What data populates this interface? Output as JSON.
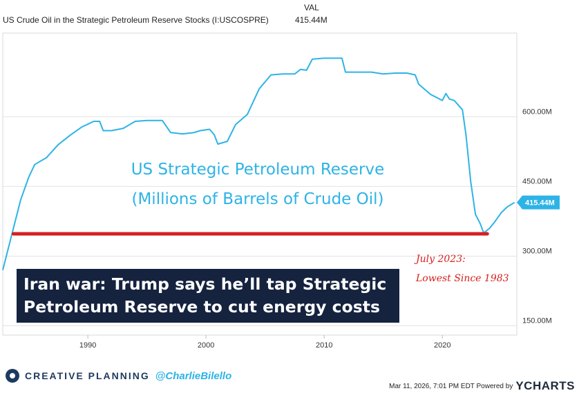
{
  "header": {
    "column_label": "VAL",
    "series_title": "US Crude Oil in the Strategic Petroleum Reserve Stocks (I:USCOSPRE)",
    "series_value": "415.44M"
  },
  "chart_data": {
    "type": "line",
    "title": "US Crude Oil in the Strategic Petroleum Reserve Stocks (I:USCOSPRE)",
    "y_tick_labels": [
      "150.00M",
      "300.00M",
      "450.00M",
      "600.00M"
    ],
    "y_ticks": [
      150,
      300,
      450,
      600
    ],
    "x_tick_labels": [
      "1990",
      "2000",
      "2010",
      "2020"
    ],
    "x_ticks": [
      1990,
      2000,
      2010,
      2020
    ],
    "xlim": [
      1982.8,
      2026.3
    ],
    "ylim": [
      130,
      780
    ],
    "line_color": "#2db3e6",
    "last_value_label": "415.44M",
    "last_value": 415.44,
    "series": [
      {
        "name": "US Crude Oil in the Strategic Petroleum Reserve Stocks",
        "points": [
          [
            1982.8,
            270
          ],
          [
            1983.5,
            340
          ],
          [
            1984.3,
            420
          ],
          [
            1985.0,
            470
          ],
          [
            1985.5,
            497
          ],
          [
            1986.5,
            512
          ],
          [
            1987.5,
            540
          ],
          [
            1988.5,
            560
          ],
          [
            1989.5,
            578
          ],
          [
            1990.5,
            590
          ],
          [
            1991.0,
            590
          ],
          [
            1991.3,
            570
          ],
          [
            1992.0,
            570
          ],
          [
            1993.0,
            575
          ],
          [
            1994.0,
            590
          ],
          [
            1995.0,
            592
          ],
          [
            1996.3,
            592
          ],
          [
            1997.0,
            566
          ],
          [
            1998.0,
            563
          ],
          [
            1999.0,
            566
          ],
          [
            1999.5,
            570
          ],
          [
            2000.3,
            573
          ],
          [
            2000.7,
            561
          ],
          [
            2001.0,
            541
          ],
          [
            2001.8,
            547
          ],
          [
            2002.5,
            583
          ],
          [
            2003.5,
            605
          ],
          [
            2004.5,
            660
          ],
          [
            2005.5,
            690
          ],
          [
            2006.5,
            692
          ],
          [
            2007.5,
            692
          ],
          [
            2008.0,
            702
          ],
          [
            2008.5,
            700
          ],
          [
            2009.0,
            724
          ],
          [
            2010.0,
            726
          ],
          [
            2010.5,
            726
          ],
          [
            2011.5,
            726
          ],
          [
            2011.8,
            696
          ],
          [
            2013.0,
            696
          ],
          [
            2014.0,
            696
          ],
          [
            2015.0,
            692
          ],
          [
            2016.0,
            694
          ],
          [
            2017.0,
            694
          ],
          [
            2017.7,
            690
          ],
          [
            2018.0,
            670
          ],
          [
            2019.0,
            648
          ],
          [
            2020.0,
            635
          ],
          [
            2020.3,
            650
          ],
          [
            2020.6,
            638
          ],
          [
            2021.0,
            635
          ],
          [
            2021.7,
            615
          ],
          [
            2022.0,
            560
          ],
          [
            2022.4,
            460
          ],
          [
            2022.8,
            390
          ],
          [
            2023.2,
            370
          ],
          [
            2023.5,
            350
          ],
          [
            2024.0,
            360
          ],
          [
            2024.5,
            376
          ],
          [
            2025.0,
            394
          ],
          [
            2025.5,
            406
          ],
          [
            2026.1,
            415.44
          ]
        ]
      }
    ],
    "annotations": {
      "title_line1": "US Strategic Petroleum Reserve",
      "title_line2": "(Millions of Barrels of Crude Oil)",
      "low_line1": "July 2023:",
      "low_line2": "Lowest Since 1983",
      "low_level": 348,
      "low_start_year": 1983.7,
      "low_end_year": 2023.8,
      "low_color": "#d62020"
    }
  },
  "banner": {
    "line1": "Iran war: Trump says he’ll tap Strategic",
    "line2": "Petroleum Reserve to cut energy costs"
  },
  "footer": {
    "brand": "CREATIVE PLANNING",
    "handle": "@CharlieBilello",
    "timestamp": "Mar 11, 2026, 7:01 PM EDT Powered by",
    "provider": "YCHARTS"
  }
}
